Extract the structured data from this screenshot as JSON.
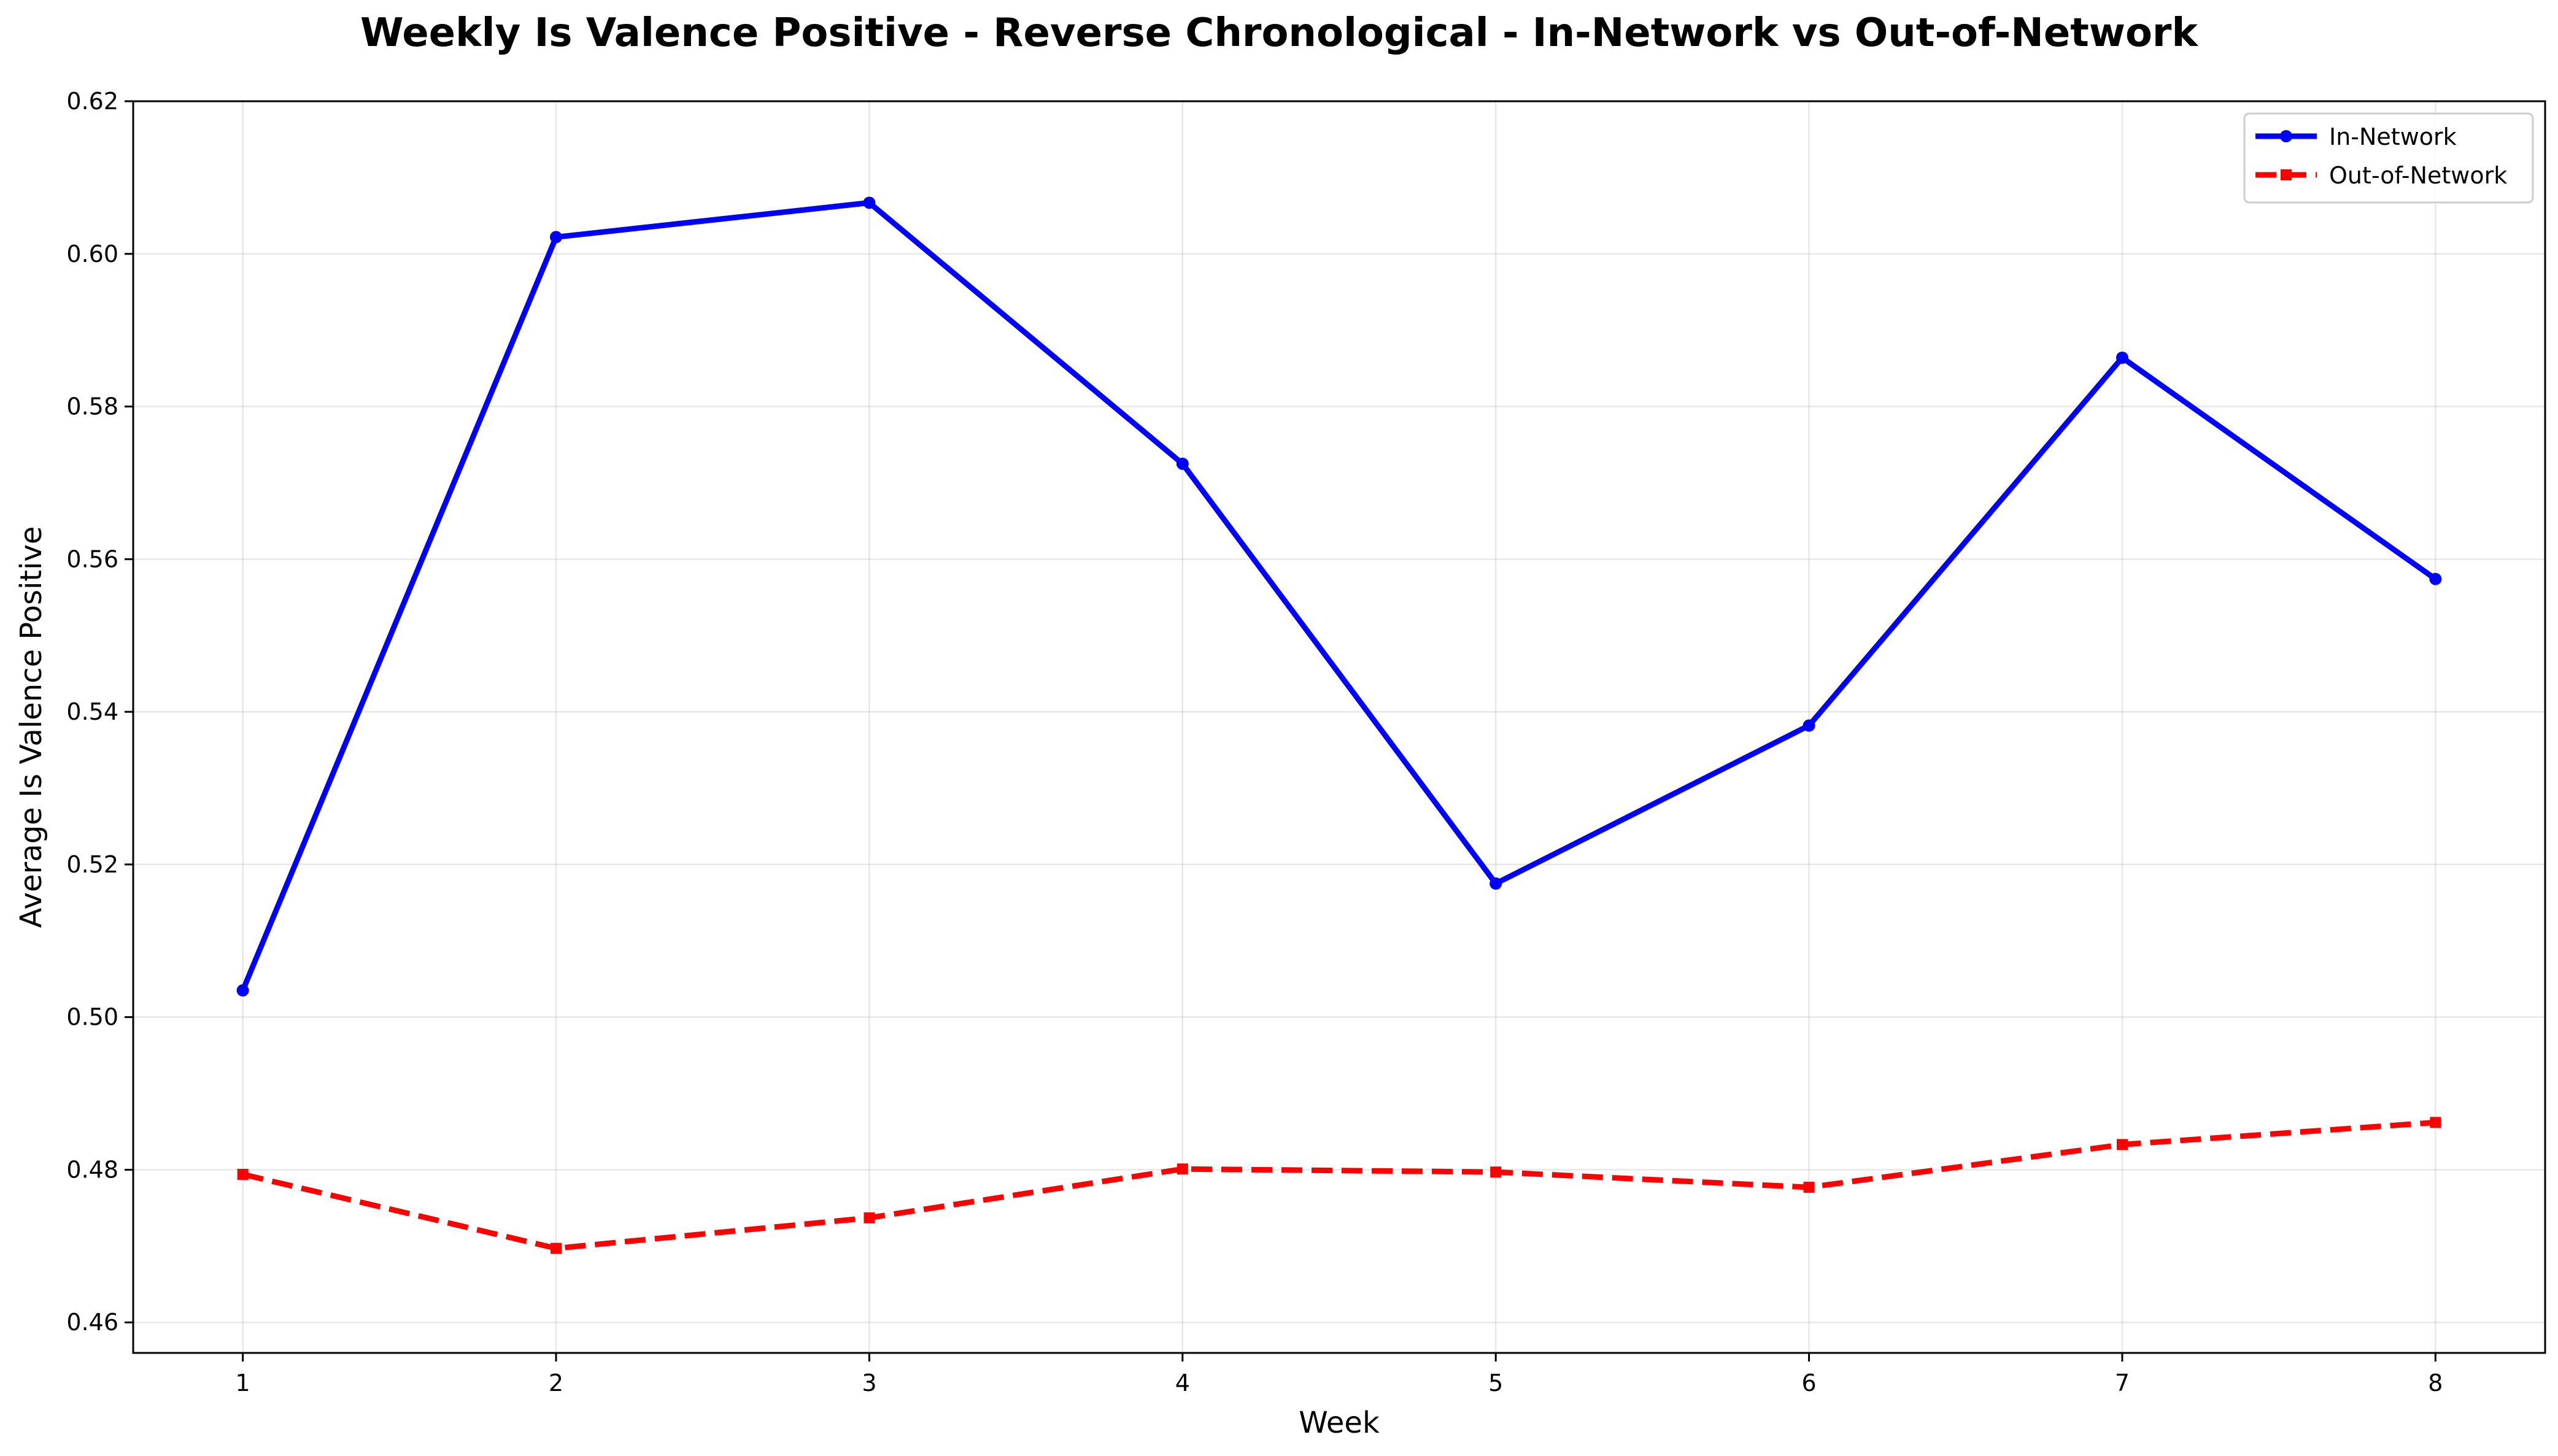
{
  "chart_data": {
    "type": "line",
    "title": "Weekly Is Valence Positive - Reverse Chronological - In-Network vs Out-of-Network",
    "xlabel": "Week",
    "ylabel": "Average Is Valence Positive",
    "x": [
      1,
      2,
      3,
      4,
      5,
      6,
      7,
      8
    ],
    "xlim": [
      0.65,
      8.35
    ],
    "ylim": [
      0.456,
      0.62
    ],
    "xticks": [
      1,
      2,
      3,
      4,
      5,
      6,
      7,
      8
    ],
    "yticks": [
      0.46,
      0.48,
      0.5,
      0.52,
      0.54,
      0.56,
      0.58,
      0.6,
      0.62
    ],
    "ytick_labels": [
      "0.46",
      "0.48",
      "0.50",
      "0.52",
      "0.54",
      "0.56",
      "0.58",
      "0.60",
      "0.62"
    ],
    "grid": true,
    "legend_position": "top-right",
    "series": [
      {
        "name": "In-Network",
        "color": "#0000ff",
        "linestyle": "solid",
        "marker": "circle",
        "values": [
          0.5035,
          0.6022,
          0.6067,
          0.5725,
          0.5175,
          0.5382,
          0.5864,
          0.5574
        ]
      },
      {
        "name": "Out-of-Network",
        "color": "#ff0000",
        "linestyle": "dashed",
        "marker": "square",
        "values": [
          0.4794,
          0.4697,
          0.4737,
          0.4801,
          0.4797,
          0.4777,
          0.4833,
          0.4862
        ]
      }
    ]
  }
}
